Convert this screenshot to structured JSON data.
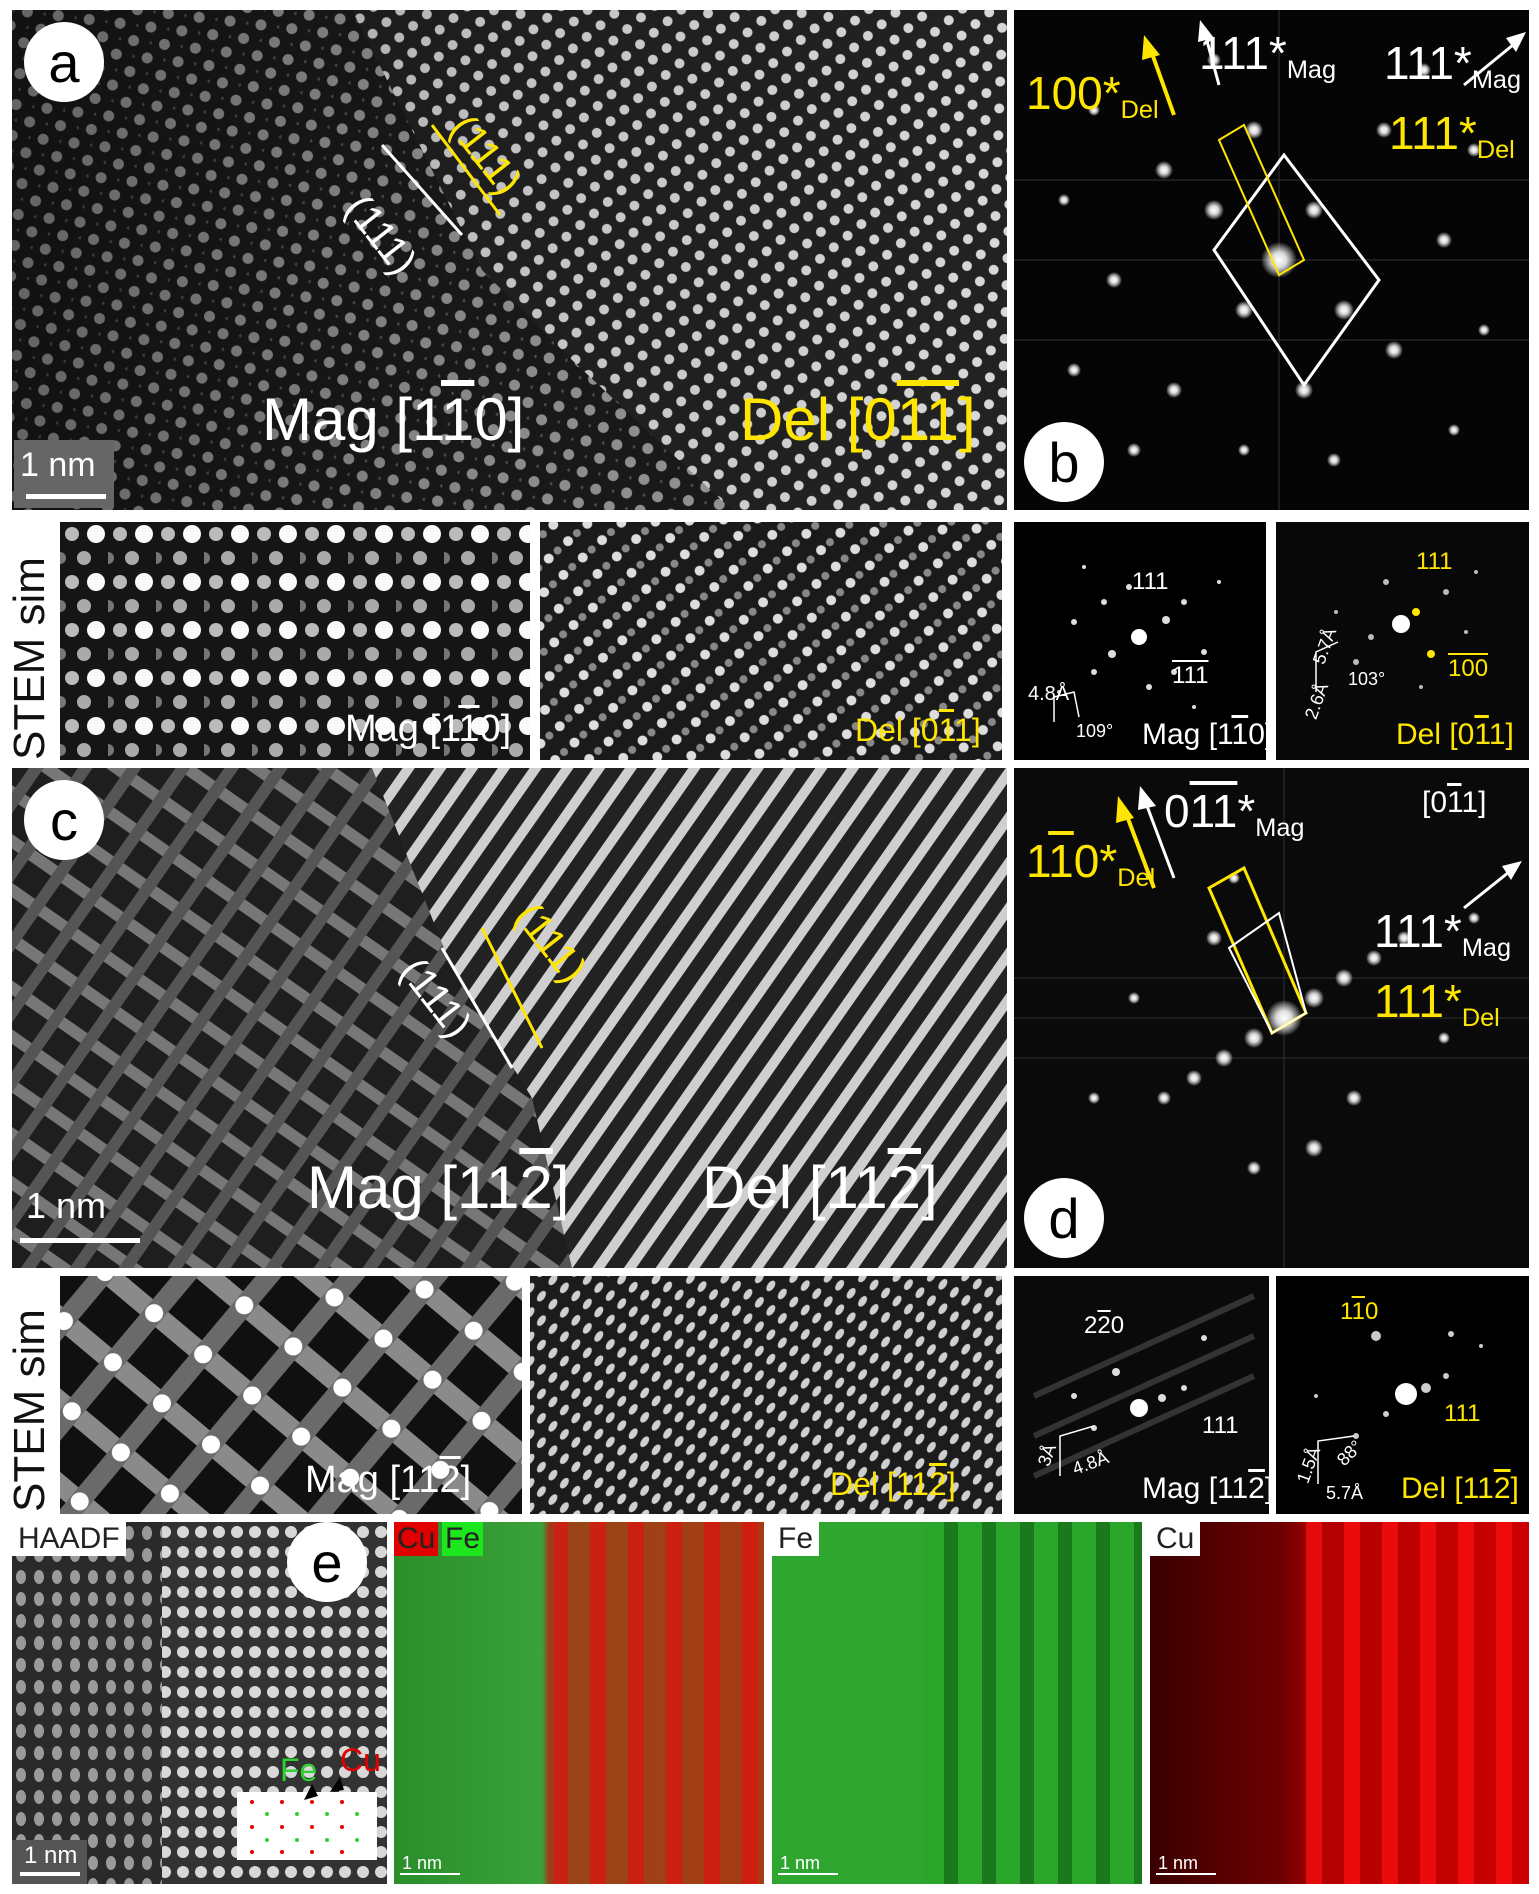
{
  "panels": {
    "a": {
      "letter": "a",
      "scale_label": "1 nm",
      "mag_label": "Mag [1",
      "mag_bar": "1",
      "mag_end": "0]",
      "del_label": "Del [0",
      "del_bar1": "1",
      "del_bar2": "1",
      "del_end": "]",
      "plane_mag": "(111)",
      "plane_del": "(111)"
    },
    "b": {
      "letter": "b",
      "del100": "100*",
      "del_sub": "Del",
      "mag111bar": "111",
      "mag111bar_star": "*",
      "mag_sub": "Mag",
      "mag111": "111*",
      "del111": "111*"
    },
    "stem1": {
      "side_label": "STEM sim",
      "mag_label": "Mag [1",
      "mag_bar": "1",
      "mag_end": "0]",
      "del_label": "Del [0",
      "del_bar": "1",
      "del_end": "1]"
    },
    "diff1": {
      "spot1": "111",
      "spot2": "111",
      "dist": "4.8Å",
      "angle": "109°",
      "mag_label": "Mag [1",
      "mag_bar": "1",
      "mag_end": "0]"
    },
    "diff2": {
      "spot1": "111",
      "spot2": "100",
      "dist1": "5.7Å",
      "dist2": "2.6Å",
      "angle": "103°",
      "del_label": "Del [0",
      "del_bar": "1",
      "del_end": "1]"
    },
    "c": {
      "letter": "c",
      "scale_label": "1 nm",
      "mag_label": "Mag [11",
      "mag_bar": "2",
      "mag_end": "]",
      "del_label": "Del [11",
      "del_bar": "2",
      "del_end": "]",
      "plane_mag": "(111)",
      "plane_del": "(111)"
    },
    "d": {
      "letter": "d",
      "del110": "110*",
      "del_sub": "Del",
      "mag011": "011*",
      "mag_sub": "Mag",
      "zone": "[011]",
      "mag111": "111*",
      "del111": "111*"
    },
    "stem2": {
      "side_label": "STEM sim",
      "mag_label": "Mag [11",
      "mag_bar": "2",
      "mag_end": "]",
      "del_label": "Del [11",
      "del_bar": "2",
      "del_end": "]"
    },
    "diff3": {
      "spot1": "220",
      "spot2": "111",
      "dist1": "3Å",
      "dist2": "4.8Å",
      "mag_label": "Mag [11",
      "mag_bar": "2",
      "mag_end": "]"
    },
    "diff4": {
      "spot1": "110",
      "spot2": "111",
      "angle": "88°",
      "dist1": "1.5Å",
      "dist2": "5.7Å",
      "del_label": "Del [11",
      "del_bar": "2",
      "del_end": "]"
    },
    "e": {
      "letter": "e",
      "haadf": "HAADF",
      "scale_label": "1 nm",
      "fe": "Fe",
      "cu": "Cu",
      "map1_cu": "Cu",
      "map1_fe": "Fe",
      "map2": "Fe",
      "map3": "Cu"
    }
  },
  "colors": {
    "yellow": "#ffe600",
    "green": "#2fd02f",
    "red": "#e00000"
  }
}
